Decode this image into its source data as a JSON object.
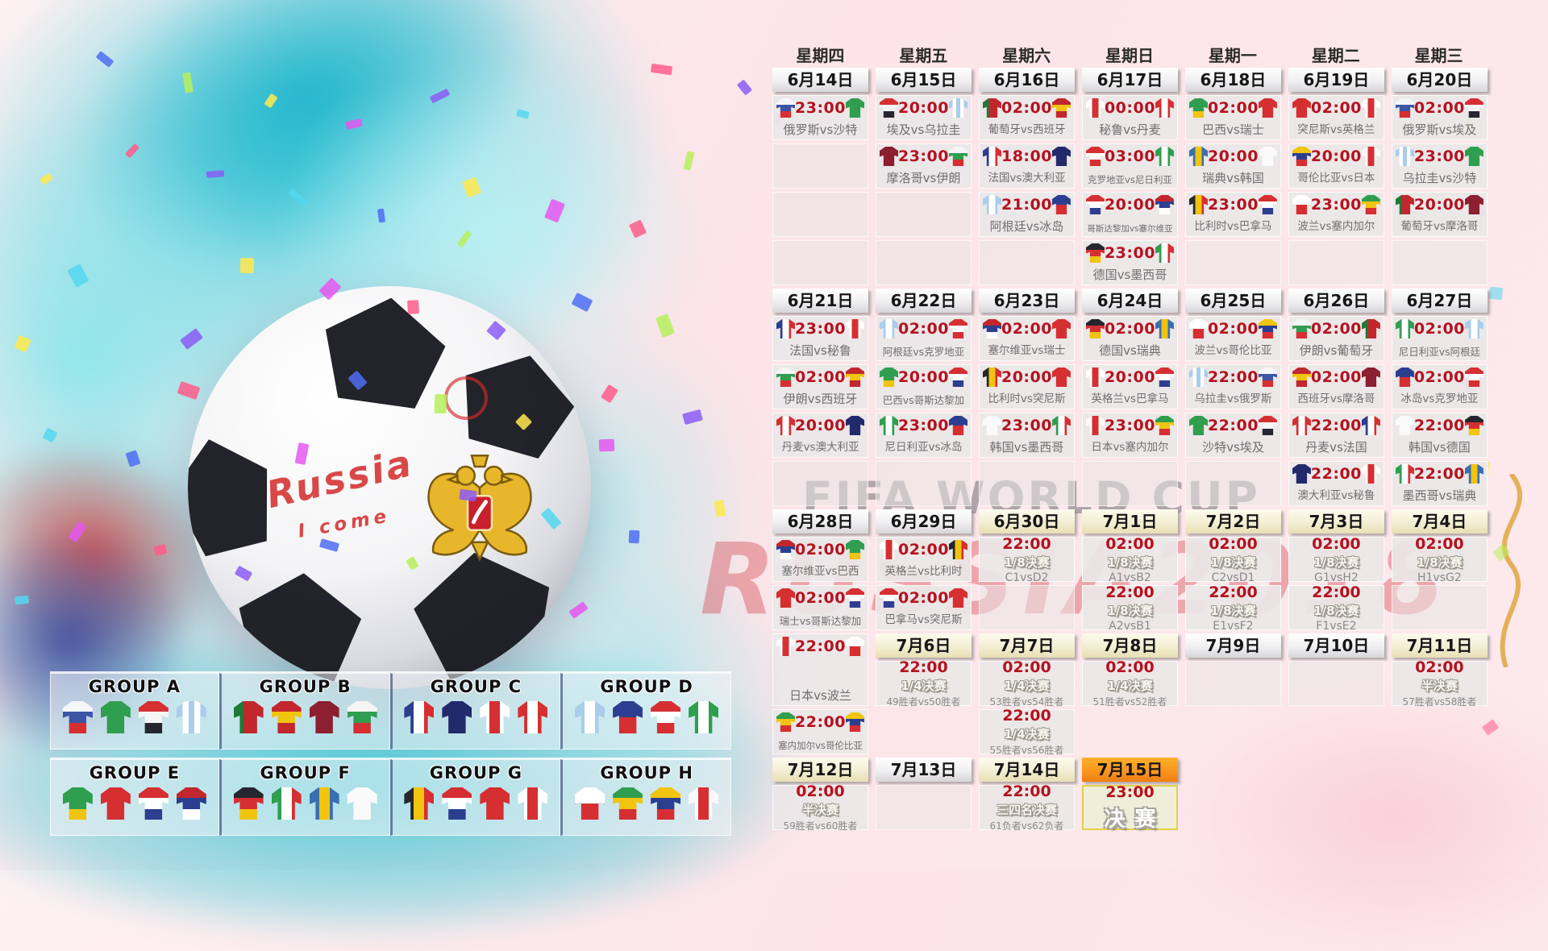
{
  "watermarks": {
    "fifa": "FIFA WORLD CUP",
    "russia": "RUSSIA2018"
  },
  "ball": {
    "script_line1": "Russia",
    "script_line2": "I come"
  },
  "colors": {
    "time_red": "#b5121f",
    "date_silver": "#e9e9eb",
    "date_cream": "#f0eacb",
    "date_orange": "#f8941d",
    "final_border": "#e3cf45",
    "confetti": [
      "#e557f0",
      "#8b5cf6",
      "#4f6df5",
      "#ffe94e",
      "#ff5c8a",
      "#53d7f0",
      "#b6f05c"
    ]
  },
  "weekdays": [
    "星期四",
    "星期五",
    "星期六",
    "星期日",
    "星期一",
    "星期二",
    "星期三"
  ],
  "teams": {
    "俄罗斯": {
      "c": [
        "#f5f6fa",
        "#3d55a5",
        "#d62f32"
      ],
      "d": "v"
    },
    "沙特": {
      "c": [
        "#2f9e4f"
      ],
      "d": "v"
    },
    "埃及": {
      "c": [
        "#d62f32",
        "#f5f5f5",
        "#26262e"
      ],
      "d": "v"
    },
    "乌拉圭": {
      "c": [
        "#a9cdea",
        "#ffffff",
        "#a9cdea",
        "#ffffff",
        "#a9cdea"
      ],
      "d": "h"
    },
    "葡萄牙": {
      "c": [
        "#1f7a36",
        "#c1272d",
        "#c1272d"
      ],
      "d": "h"
    },
    "西班牙": {
      "c": [
        "#c1272d",
        "#f1c40f",
        "#c1272d"
      ],
      "d": "v"
    },
    "摩洛哥": {
      "c": [
        "#8c1f30"
      ],
      "d": "v"
    },
    "伊朗": {
      "c": [
        "#f5f5f5",
        "#2f9e4f",
        "#d62f32"
      ],
      "d": "v"
    },
    "法国": {
      "c": [
        "#2c3e8f",
        "#ffffff",
        "#d62f32"
      ],
      "d": "h"
    },
    "澳大利亚": {
      "c": [
        "#222a6b"
      ],
      "d": "v"
    },
    "秘鲁": {
      "c": [
        "#ffffff",
        "#d62f32",
        "#ffffff"
      ],
      "d": "h"
    },
    "丹麦": {
      "c": [
        "#d62f32",
        "#ffffff",
        "#d62f32"
      ],
      "d": "h"
    },
    "阿根廷": {
      "c": [
        "#a9cdea",
        "#ffffff",
        "#a9cdea"
      ],
      "d": "h"
    },
    "冰岛": {
      "c": [
        "#2c3e8f",
        "#d62f32"
      ],
      "d": "v"
    },
    "克罗地亚": {
      "c": [
        "#d62f32",
        "#ffffff",
        "#d62f32"
      ],
      "d": "v"
    },
    "尼日利亚": {
      "c": [
        "#2f9e4f",
        "#ffffff",
        "#2f9e4f"
      ],
      "d": "h"
    },
    "哥斯达黎加": {
      "c": [
        "#d62f32",
        "#ffffff",
        "#2c3e8f"
      ],
      "d": "v"
    },
    "塞尔维亚": {
      "c": [
        "#c1272d",
        "#2c3e8f",
        "#ffffff"
      ],
      "d": "v"
    },
    "德国": {
      "c": [
        "#26262e",
        "#d62f32",
        "#f1c40f"
      ],
      "d": "v"
    },
    "墨西哥": {
      "c": [
        "#2f9e4f",
        "#ffffff",
        "#d62f32"
      ],
      "d": "h"
    },
    "巴西": {
      "c": [
        "#2f9e4f",
        "#2f9e4f",
        "#f1c40f"
      ],
      "d": "v"
    },
    "瑞士": {
      "c": [
        "#d62f32"
      ],
      "d": "v"
    },
    "瑞典": {
      "c": [
        "#3a6fb0",
        "#f1c40f",
        "#3a6fb0"
      ],
      "d": "h"
    },
    "韩国": {
      "c": [
        "#fafafa"
      ],
      "d": "v"
    },
    "比利时": {
      "c": [
        "#26262e",
        "#f1c40f",
        "#d62f32"
      ],
      "d": "h"
    },
    "巴拿马": {
      "c": [
        "#d62f32",
        "#ffffff",
        "#2c3e8f"
      ],
      "d": "v"
    },
    "突尼斯": {
      "c": [
        "#d62f32"
      ],
      "d": "v"
    },
    "英格兰": {
      "c": [
        "#ffffff",
        "#d62f32",
        "#ffffff"
      ],
      "d": "h"
    },
    "哥伦比亚": {
      "c": [
        "#f1c40f",
        "#2c3e8f",
        "#d62f32"
      ],
      "d": "v"
    },
    "日本": {
      "c": [
        "#fafafa",
        "#d62f32",
        "#fafafa"
      ],
      "d": "h"
    },
    "波兰": {
      "c": [
        "#ffffff",
        "#d62f32"
      ],
      "d": "v"
    },
    "塞内加尔": {
      "c": [
        "#2f9e4f",
        "#f1c40f",
        "#d62f32"
      ],
      "d": "v"
    }
  },
  "groups": [
    {
      "label": "GROUP A",
      "teams": [
        "俄罗斯",
        "沙特",
        "埃及",
        "乌拉圭"
      ]
    },
    {
      "label": "GROUP B",
      "teams": [
        "葡萄牙",
        "西班牙",
        "摩洛哥",
        "伊朗"
      ]
    },
    {
      "label": "GROUP C",
      "teams": [
        "法国",
        "澳大利亚",
        "秘鲁",
        "丹麦"
      ]
    },
    {
      "label": "GROUP D",
      "teams": [
        "阿根廷",
        "冰岛",
        "克罗地亚",
        "尼日利亚"
      ]
    },
    {
      "label": "GROUP E",
      "teams": [
        "巴西",
        "瑞士",
        "哥斯达黎加",
        "塞尔维亚"
      ]
    },
    {
      "label": "GROUP F",
      "teams": [
        "德国",
        "墨西哥",
        "瑞典",
        "韩国"
      ]
    },
    {
      "label": "GROUP G",
      "teams": [
        "比利时",
        "巴拿马",
        "突尼斯",
        "英格兰"
      ]
    },
    {
      "label": "GROUP H",
      "teams": [
        "波兰",
        "塞内加尔",
        "哥伦比亚",
        "日本"
      ]
    }
  ],
  "calendar": {
    "vs_separator": "vs",
    "rows": [
      [
        {
          "t": "date",
          "label": "6月14日",
          "s": "silver"
        },
        {
          "t": "date",
          "label": "6月15日",
          "s": "silver"
        },
        {
          "t": "date",
          "label": "6月16日",
          "s": "silver"
        },
        {
          "t": "date",
          "label": "6月17日",
          "s": "silver"
        },
        {
          "t": "date",
          "label": "6月18日",
          "s": "silver"
        },
        {
          "t": "date",
          "label": "6月19日",
          "s": "silver"
        },
        {
          "t": "date",
          "label": "6月20日",
          "s": "silver"
        }
      ],
      [
        {
          "t": "m",
          "time": "23:00",
          "h": "俄罗斯",
          "a": "沙特"
        },
        {
          "t": "m",
          "time": "20:00",
          "h": "埃及",
          "a": "乌拉圭"
        },
        {
          "t": "m",
          "time": "02:00",
          "h": "葡萄牙",
          "a": "西班牙"
        },
        {
          "t": "m",
          "time": "00:00",
          "h": "秘鲁",
          "a": "丹麦"
        },
        {
          "t": "m",
          "time": "02:00",
          "h": "巴西",
          "a": "瑞士"
        },
        {
          "t": "m",
          "time": "02:00",
          "h": "突尼斯",
          "a": "英格兰"
        },
        {
          "t": "m",
          "time": "02:00",
          "h": "俄罗斯",
          "a": "埃及"
        }
      ],
      [
        {
          "t": "e"
        },
        {
          "t": "m",
          "time": "23:00",
          "h": "摩洛哥",
          "a": "伊朗"
        },
        {
          "t": "m",
          "time": "18:00",
          "h": "法国",
          "a": "澳大利亚"
        },
        {
          "t": "m",
          "time": "03:00",
          "h": "克罗地亚",
          "a": "尼日利亚"
        },
        {
          "t": "m",
          "time": "20:00",
          "h": "瑞典",
          "a": "韩国"
        },
        {
          "t": "m",
          "time": "20:00",
          "h": "哥伦比亚",
          "a": "日本"
        },
        {
          "t": "m",
          "time": "23:00",
          "h": "乌拉圭",
          "a": "沙特"
        }
      ],
      [
        {
          "t": "e"
        },
        {
          "t": "e"
        },
        {
          "t": "m",
          "time": "21:00",
          "h": "阿根廷",
          "a": "冰岛"
        },
        {
          "t": "m",
          "time": "20:00",
          "h": "哥斯达黎加",
          "a": "塞尔维亚"
        },
        {
          "t": "m",
          "time": "23:00",
          "h": "比利时",
          "a": "巴拿马"
        },
        {
          "t": "m",
          "time": "23:00",
          "h": "波兰",
          "a": "塞内加尔"
        },
        {
          "t": "m",
          "time": "20:00",
          "h": "葡萄牙",
          "a": "摩洛哥"
        }
      ],
      [
        {
          "t": "e"
        },
        {
          "t": "e"
        },
        {
          "t": "e"
        },
        {
          "t": "m",
          "time": "23:00",
          "h": "德国",
          "a": "墨西哥"
        },
        {
          "t": "e"
        },
        {
          "t": "e"
        },
        {
          "t": "e"
        }
      ],
      [
        {
          "t": "date",
          "label": "6月21日",
          "s": "silver"
        },
        {
          "t": "date",
          "label": "6月22日",
          "s": "silver"
        },
        {
          "t": "date",
          "label": "6月23日",
          "s": "silver"
        },
        {
          "t": "date",
          "label": "6月24日",
          "s": "silver"
        },
        {
          "t": "date",
          "label": "6月25日",
          "s": "silver"
        },
        {
          "t": "date",
          "label": "6月26日",
          "s": "silver"
        },
        {
          "t": "date",
          "label": "6月27日",
          "s": "silver"
        }
      ],
      [
        {
          "t": "m",
          "time": "23:00",
          "h": "法国",
          "a": "秘鲁"
        },
        {
          "t": "m",
          "time": "02:00",
          "h": "阿根廷",
          "a": "克罗地亚"
        },
        {
          "t": "m",
          "time": "02:00",
          "h": "塞尔维亚",
          "a": "瑞士"
        },
        {
          "t": "m",
          "time": "02:00",
          "h": "德国",
          "a": "瑞典"
        },
        {
          "t": "m",
          "time": "02:00",
          "h": "波兰",
          "a": "哥伦比亚"
        },
        {
          "t": "m",
          "time": "02:00",
          "h": "伊朗",
          "a": "葡萄牙"
        },
        {
          "t": "m",
          "time": "02:00",
          "h": "尼日利亚",
          "a": "阿根廷"
        }
      ],
      [
        {
          "t": "m",
          "time": "02:00",
          "h": "伊朗",
          "a": "西班牙"
        },
        {
          "t": "m",
          "time": "20:00",
          "h": "巴西",
          "a": "哥斯达黎加"
        },
        {
          "t": "m",
          "time": "20:00",
          "h": "比利时",
          "a": "突尼斯"
        },
        {
          "t": "m",
          "time": "20:00",
          "h": "英格兰",
          "a": "巴拿马"
        },
        {
          "t": "m",
          "time": "22:00",
          "h": "乌拉圭",
          "a": "俄罗斯"
        },
        {
          "t": "m",
          "time": "02:00",
          "h": "西班牙",
          "a": "摩洛哥"
        },
        {
          "t": "m",
          "time": "02:00",
          "h": "冰岛",
          "a": "克罗地亚"
        }
      ],
      [
        {
          "t": "m",
          "time": "20:00",
          "h": "丹麦",
          "a": "澳大利亚"
        },
        {
          "t": "m",
          "time": "23:00",
          "h": "尼日利亚",
          "a": "冰岛"
        },
        {
          "t": "m",
          "time": "23:00",
          "h": "韩国",
          "a": "墨西哥"
        },
        {
          "t": "m",
          "time": "23:00",
          "h": "日本",
          "a": "塞内加尔"
        },
        {
          "t": "m",
          "time": "22:00",
          "h": "沙特",
          "a": "埃及"
        },
        {
          "t": "m",
          "time": "22:00",
          "h": "丹麦",
          "a": "法国"
        },
        {
          "t": "m",
          "time": "22:00",
          "h": "韩国",
          "a": "德国"
        }
      ],
      [
        {
          "t": "e"
        },
        {
          "t": "e"
        },
        {
          "t": "e"
        },
        {
          "t": "e"
        },
        {
          "t": "e"
        },
        {
          "t": "m",
          "time": "22:00",
          "h": "澳大利亚",
          "a": "秘鲁"
        },
        {
          "t": "m",
          "time": "22:00",
          "h": "墨西哥",
          "a": "瑞典"
        }
      ],
      [
        {
          "t": "date",
          "label": "6月28日",
          "s": "silver"
        },
        {
          "t": "date",
          "label": "6月29日",
          "s": "silver"
        },
        {
          "t": "date",
          "label": "6月30日",
          "s": "cream"
        },
        {
          "t": "date",
          "label": "7月1日",
          "s": "cream"
        },
        {
          "t": "date",
          "label": "7月2日",
          "s": "cream"
        },
        {
          "t": "date",
          "label": "7月3日",
          "s": "cream"
        },
        {
          "t": "date",
          "label": "7月4日",
          "s": "cream"
        }
      ],
      [
        {
          "t": "m",
          "time": "02:00",
          "h": "塞尔维亚",
          "a": "巴西"
        },
        {
          "t": "m",
          "time": "02:00",
          "h": "英格兰",
          "a": "比利时"
        },
        {
          "t": "k",
          "time": "22:00",
          "stage": "1/8决赛",
          "vs": "C1vsD2"
        },
        {
          "t": "k",
          "time": "02:00",
          "stage": "1/8决赛",
          "vs": "A1vsB2"
        },
        {
          "t": "k",
          "time": "02:00",
          "stage": "1/8决赛",
          "vs": "C2vsD1"
        },
        {
          "t": "k",
          "time": "02:00",
          "stage": "1/8决赛",
          "vs": "G1vsH2"
        },
        {
          "t": "k",
          "time": "02:00",
          "stage": "1/8决赛",
          "vs": "H1vsG2"
        }
      ],
      [
        {
          "t": "m",
          "time": "02:00",
          "h": "瑞士",
          "a": "哥斯达黎加"
        },
        {
          "t": "m",
          "time": "02:00",
          "h": "巴拿马",
          "a": "突尼斯"
        },
        {
          "t": "e"
        },
        {
          "t": "k",
          "time": "22:00",
          "stage": "1/8决赛",
          "vs": "A2vsB1"
        },
        {
          "t": "k",
          "time": "22:00",
          "stage": "1/8决赛",
          "vs": "E1vsF2"
        },
        {
          "t": "k",
          "time": "22:00",
          "stage": "1/8决赛",
          "vs": "F1vsE2"
        },
        {
          "t": "e"
        }
      ],
      [
        {
          "t": "m",
          "time": "22:00",
          "h": "日本",
          "a": "波兰",
          "span": 2
        },
        {
          "t": "date",
          "label": "7月6日",
          "s": "cream"
        },
        {
          "t": "date",
          "label": "7月7日",
          "s": "cream"
        },
        {
          "t": "date",
          "label": "7月8日",
          "s": "cream"
        },
        {
          "t": "date",
          "label": "7月9日",
          "s": "silver"
        },
        {
          "t": "date",
          "label": "7月10日",
          "s": "silver"
        },
        {
          "t": "date",
          "label": "7月11日",
          "s": "cream"
        }
      ],
      [
        null,
        {
          "t": "k",
          "time": "22:00",
          "stage": "1/4决赛",
          "vs": "49胜者vs50胜者"
        },
        {
          "t": "k",
          "time": "02:00",
          "stage": "1/4决赛",
          "vs": "53胜者vs54胜者"
        },
        {
          "t": "k",
          "time": "02:00",
          "stage": "1/4决赛",
          "vs": "51胜者vs52胜者"
        },
        {
          "t": "e"
        },
        {
          "t": "e"
        },
        {
          "t": "k",
          "time": "02:00",
          "stage": "半决赛",
          "vs": "57胜者vs58胜者"
        }
      ],
      [
        {
          "t": "m",
          "time": "22:00",
          "h": "塞内加尔",
          "a": "哥伦比亚"
        },
        null,
        {
          "t": "k",
          "time": "22:00",
          "stage": "1/4决赛",
          "vs": "55胜者vs56胜者"
        },
        null,
        null,
        null,
        null
      ],
      [
        {
          "t": "date",
          "label": "7月12日",
          "s": "cream"
        },
        {
          "t": "date",
          "label": "7月13日",
          "s": "silver"
        },
        {
          "t": "date",
          "label": "7月14日",
          "s": "cream"
        },
        {
          "t": "date",
          "label": "7月15日",
          "s": "orange"
        },
        null,
        null,
        null
      ],
      [
        {
          "t": "k",
          "time": "02:00",
          "stage": "半决赛",
          "vs": "59胜者vs60胜者"
        },
        {
          "t": "e"
        },
        {
          "t": "k",
          "time": "22:00",
          "stage": "三四名决赛",
          "vs": "61负者vs62负者"
        },
        {
          "t": "f",
          "time": "23:00",
          "label": "决赛"
        },
        null,
        null,
        null
      ]
    ]
  }
}
